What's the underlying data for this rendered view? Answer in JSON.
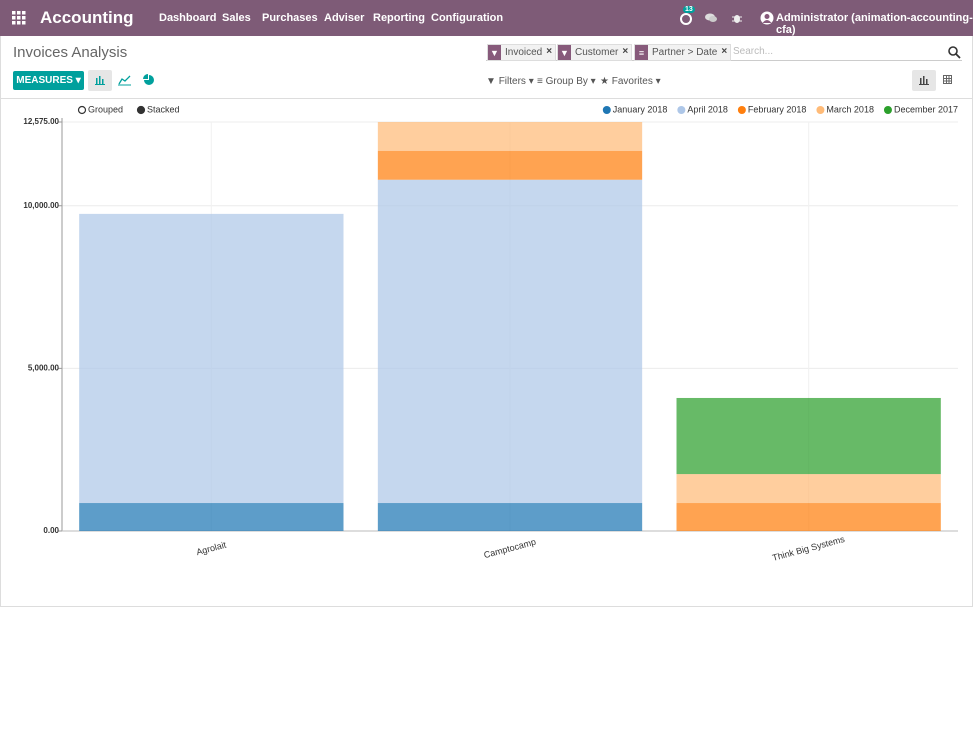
{
  "navbar": {
    "app": "Accounting",
    "menu": [
      "Dashboard",
      "Sales",
      "Purchases",
      "Adviser",
      "Reporting",
      "Configuration"
    ],
    "notifications": "13",
    "user": "Administrator (animation-accounting-cfa)"
  },
  "control_panel": {
    "title": "Invoices Analysis",
    "facets": [
      "Invoiced",
      "Customer",
      "Partner > Date"
    ],
    "search_placeholder": "Search...",
    "measures": "MEASURES",
    "filters": "Filters",
    "group_by": "Group By",
    "favorites": "Favorites"
  },
  "chart_data": {
    "type": "bar",
    "stacked": true,
    "modes": [
      "Grouped",
      "Stacked"
    ],
    "categories": [
      "Agrolait",
      "Camptocamp",
      "Think Big Systems"
    ],
    "series": [
      {
        "name": "January 2018",
        "color": "#1f77b4",
        "values": [
          860,
          860,
          null
        ]
      },
      {
        "name": "April 2018",
        "color": "#aec7e8",
        "values": [
          8890,
          9940,
          null
        ]
      },
      {
        "name": "February 2018",
        "color": "#ff7f0e",
        "values": [
          null,
          890,
          860
        ]
      },
      {
        "name": "March 2018",
        "color": "#ffbb78",
        "values": [
          null,
          885,
          890
        ]
      },
      {
        "name": "December 2017",
        "color": "#2ca02c",
        "values": [
          null,
          null,
          2340
        ]
      }
    ],
    "ylim": [
      0,
      12575
    ],
    "yticks": [
      {
        "value": 0,
        "label": "0.00"
      },
      {
        "value": 5000,
        "label": "5,000.00"
      },
      {
        "value": 10000,
        "label": "10,000.00"
      },
      {
        "value": 12575,
        "label": "12,575.00"
      }
    ],
    "grid": true,
    "legend": "top-right"
  }
}
